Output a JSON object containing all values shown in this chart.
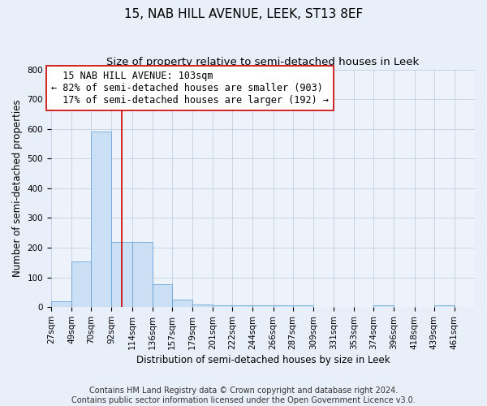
{
  "title": "15, NAB HILL AVENUE, LEEK, ST13 8EF",
  "subtitle": "Size of property relative to semi-detached houses in Leek",
  "xlabel": "Distribution of semi-detached houses by size in Leek",
  "ylabel": "Number of semi-detached properties",
  "bar_labels": [
    "27sqm",
    "49sqm",
    "70sqm",
    "92sqm",
    "114sqm",
    "136sqm",
    "157sqm",
    "179sqm",
    "201sqm",
    "222sqm",
    "244sqm",
    "266sqm",
    "287sqm",
    "309sqm",
    "331sqm",
    "353sqm",
    "374sqm",
    "396sqm",
    "418sqm",
    "439sqm",
    "461sqm"
  ],
  "bar_values": [
    20,
    155,
    592,
    218,
    218,
    78,
    25,
    10,
    5,
    5,
    5,
    5,
    5,
    0,
    0,
    0,
    5,
    0,
    0,
    5,
    0
  ],
  "bar_color": "#cce0f5",
  "bar_edge_color": "#5a9ad4",
  "property_label": "15 NAB HILL AVENUE: 103sqm",
  "smaller_pct": 82,
  "smaller_count": 903,
  "larger_pct": 17,
  "larger_count": 192,
  "vline_color": "#cc0000",
  "vline_x": 103,
  "bin_edges": [
    27,
    49,
    70,
    92,
    114,
    136,
    157,
    179,
    201,
    222,
    244,
    266,
    287,
    309,
    331,
    353,
    374,
    396,
    418,
    439,
    461,
    483
  ],
  "ylim": [
    0,
    800
  ],
  "yticks": [
    0,
    100,
    200,
    300,
    400,
    500,
    600,
    700,
    800
  ],
  "background_color": "#e8eff8",
  "plot_bg_color": "#eef3fb",
  "footer": "Contains HM Land Registry data © Crown copyright and database right 2024.\nContains public sector information licensed under the Open Government Licence v3.0.",
  "annotation_box_color": "#ffffff",
  "annotation_box_edge": "#cc0000",
  "title_fontsize": 11,
  "subtitle_fontsize": 9.5,
  "axis_label_fontsize": 8.5,
  "tick_fontsize": 7.5,
  "annotation_fontsize": 8.5,
  "footer_fontsize": 7
}
